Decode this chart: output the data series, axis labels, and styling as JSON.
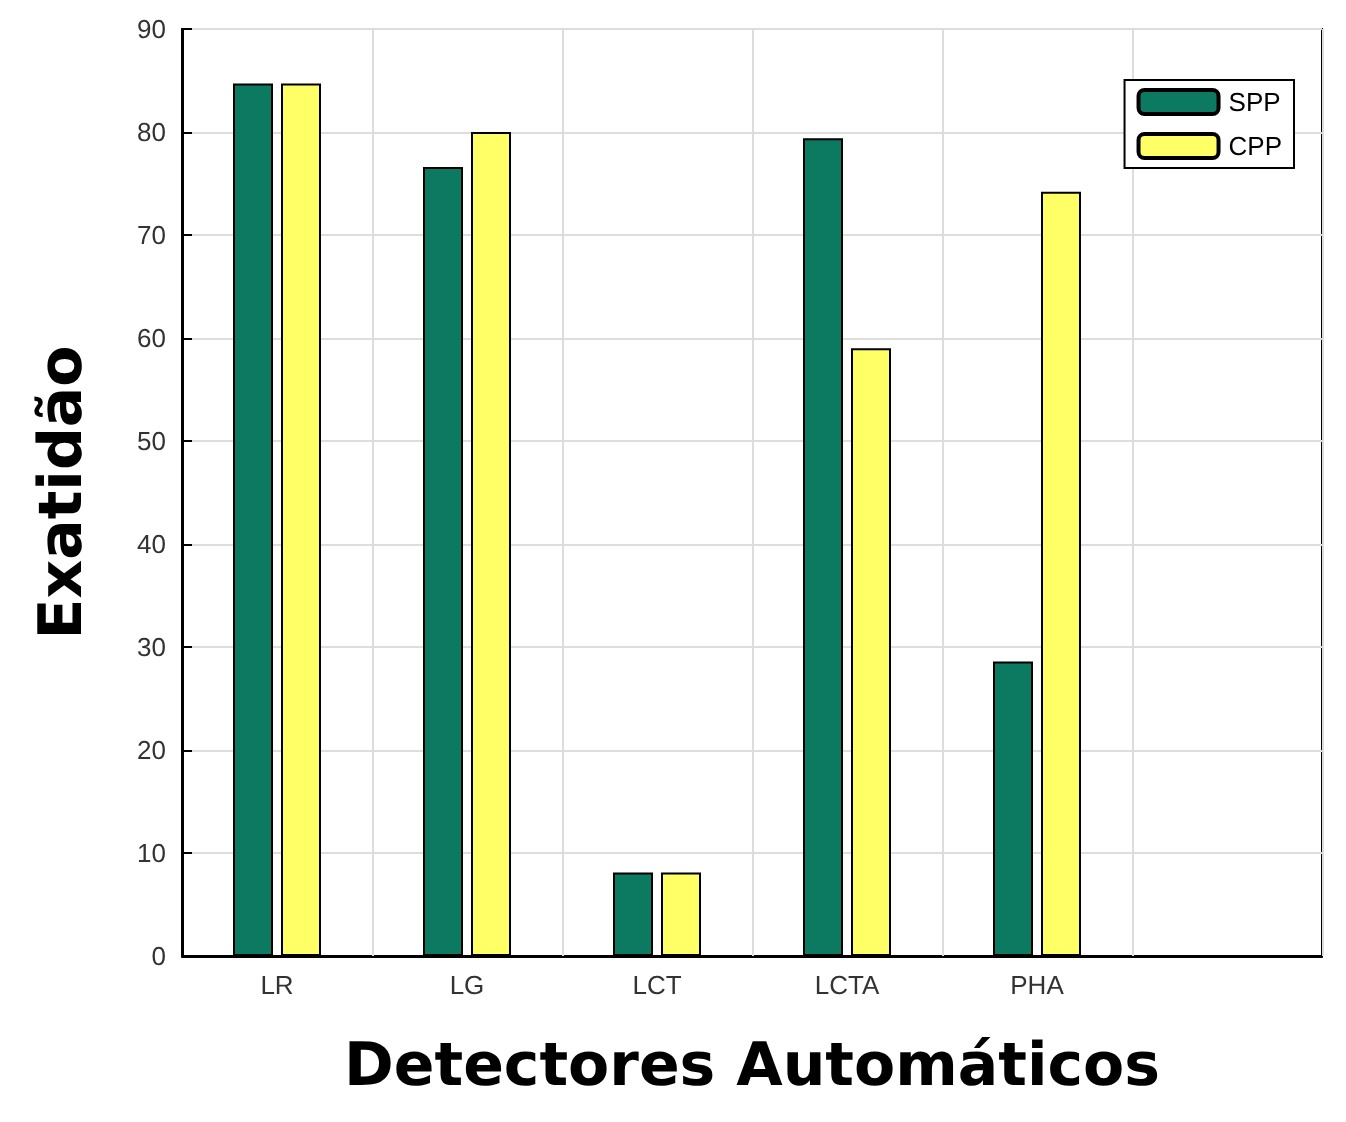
{
  "chart_data": {
    "type": "bar",
    "xlabel": "Detectores Automáticos",
    "ylabel": "Exatidão",
    "categories": [
      "LR",
      "LG",
      "LCT",
      "LCTA",
      "PHA",
      null
    ],
    "series": [
      {
        "name": "SPP",
        "color": "#0b7a60",
        "values": [
          84.7,
          76.6,
          8.1,
          79.4,
          28.6,
          null
        ]
      },
      {
        "name": "CPP",
        "color": "#ffff66",
        "values": [
          84.7,
          80.0,
          8.1,
          59.0,
          74.2,
          null
        ]
      }
    ],
    "ylim": [
      0,
      90
    ],
    "yticks": [
      0,
      10,
      20,
      30,
      40,
      50,
      60,
      70,
      80,
      90
    ],
    "grid": true,
    "legend": "top right"
  }
}
